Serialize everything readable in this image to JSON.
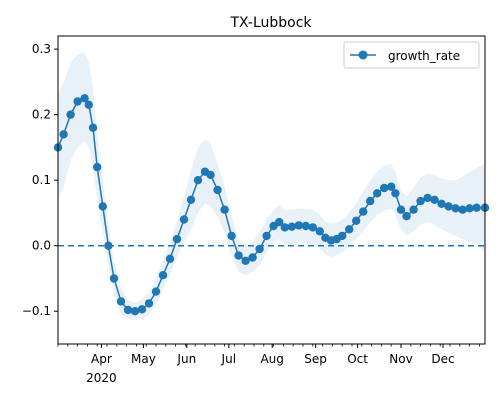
{
  "chart_data": {
    "type": "line",
    "title": "TX-Lubbock",
    "xlabel": "",
    "ylabel": "",
    "x_start": "2020-03-01",
    "x_end": "2020-12-31",
    "ylim": [
      -0.15,
      0.32
    ],
    "yticks": [
      -0.1,
      0.0,
      0.1,
      0.2,
      0.3
    ],
    "ytick_labels": [
      "−0.1",
      "0.0",
      "0.1",
      "0.2",
      "0.3"
    ],
    "xticks": [
      {
        "date": "2020-04-01",
        "label": "Apr"
      },
      {
        "date": "2020-05-01",
        "label": "May"
      },
      {
        "date": "2020-06-01",
        "label": "Jun"
      },
      {
        "date": "2020-07-01",
        "label": "Jul"
      },
      {
        "date": "2020-08-01",
        "label": "Aug"
      },
      {
        "date": "2020-09-01",
        "label": "Sep"
      },
      {
        "date": "2020-10-01",
        "label": "Oct"
      },
      {
        "date": "2020-11-01",
        "label": "Nov"
      },
      {
        "date": "2020-12-01",
        "label": "Dec"
      }
    ],
    "year_label": "2020",
    "reference_line": {
      "y": 0.0,
      "style": "dashed",
      "color": "#1f77b4"
    },
    "legend": {
      "location": "upper right",
      "entries": [
        "growth_rate"
      ]
    },
    "series": [
      {
        "name": "growth_rate",
        "color": "#1f77b4",
        "marker": "circle",
        "band_color": "#1f77b4",
        "points": [
          {
            "x": "2020-03-01",
            "y": 0.15,
            "lo": 0.07,
            "hi": 0.23
          },
          {
            "x": "2020-03-05",
            "y": 0.17,
            "lo": 0.09,
            "hi": 0.25
          },
          {
            "x": "2020-03-10",
            "y": 0.2,
            "lo": 0.13,
            "hi": 0.28
          },
          {
            "x": "2020-03-15",
            "y": 0.22,
            "lo": 0.15,
            "hi": 0.292
          },
          {
            "x": "2020-03-20",
            "y": 0.225,
            "lo": 0.16,
            "hi": 0.295
          },
          {
            "x": "2020-03-23",
            "y": 0.215,
            "lo": 0.15,
            "hi": 0.28
          },
          {
            "x": "2020-03-26",
            "y": 0.18,
            "lo": 0.12,
            "hi": 0.24
          },
          {
            "x": "2020-03-29",
            "y": 0.12,
            "lo": 0.07,
            "hi": 0.17
          },
          {
            "x": "2020-04-02",
            "y": 0.06,
            "lo": 0.02,
            "hi": 0.1
          },
          {
            "x": "2020-04-06",
            "y": 0.0,
            "lo": -0.03,
            "hi": 0.03
          },
          {
            "x": "2020-04-10",
            "y": -0.05,
            "lo": -0.075,
            "hi": -0.025
          },
          {
            "x": "2020-04-15",
            "y": -0.085,
            "lo": -0.105,
            "hi": -0.065
          },
          {
            "x": "2020-04-20",
            "y": -0.098,
            "lo": -0.112,
            "hi": -0.083
          },
          {
            "x": "2020-04-25",
            "y": -0.1,
            "lo": -0.113,
            "hi": -0.087
          },
          {
            "x": "2020-04-30",
            "y": -0.097,
            "lo": -0.112,
            "hi": -0.082
          },
          {
            "x": "2020-05-05",
            "y": -0.088,
            "lo": -0.105,
            "hi": -0.07
          },
          {
            "x": "2020-05-10",
            "y": -0.07,
            "lo": -0.09,
            "hi": -0.05
          },
          {
            "x": "2020-05-15",
            "y": -0.045,
            "lo": -0.068,
            "hi": -0.022
          },
          {
            "x": "2020-05-20",
            "y": -0.02,
            "lo": -0.045,
            "hi": 0.005
          },
          {
            "x": "2020-05-25",
            "y": 0.01,
            "lo": -0.018,
            "hi": 0.038
          },
          {
            "x": "2020-05-30",
            "y": 0.04,
            "lo": 0.005,
            "hi": 0.075
          },
          {
            "x": "2020-06-04",
            "y": 0.07,
            "lo": 0.025,
            "hi": 0.115
          },
          {
            "x": "2020-06-09",
            "y": 0.1,
            "lo": 0.05,
            "hi": 0.15
          },
          {
            "x": "2020-06-14",
            "y": 0.113,
            "lo": 0.065,
            "hi": 0.162
          },
          {
            "x": "2020-06-18",
            "y": 0.108,
            "lo": 0.06,
            "hi": 0.155
          },
          {
            "x": "2020-06-23",
            "y": 0.085,
            "lo": 0.045,
            "hi": 0.125
          },
          {
            "x": "2020-06-28",
            "y": 0.055,
            "lo": 0.02,
            "hi": 0.09
          },
          {
            "x": "2020-07-03",
            "y": 0.015,
            "lo": -0.015,
            "hi": 0.045
          },
          {
            "x": "2020-07-08",
            "y": -0.015,
            "lo": -0.04,
            "hi": 0.01
          },
          {
            "x": "2020-07-13",
            "y": -0.023,
            "lo": -0.045,
            "hi": 0.0
          },
          {
            "x": "2020-07-18",
            "y": -0.018,
            "lo": -0.04,
            "hi": 0.005
          },
          {
            "x": "2020-07-23",
            "y": -0.005,
            "lo": -0.03,
            "hi": 0.02
          },
          {
            "x": "2020-07-28",
            "y": 0.015,
            "lo": -0.01,
            "hi": 0.04
          },
          {
            "x": "2020-08-02",
            "y": 0.03,
            "lo": 0.005,
            "hi": 0.055
          },
          {
            "x": "2020-08-06",
            "y": 0.036,
            "lo": 0.01,
            "hi": 0.062
          },
          {
            "x": "2020-08-10",
            "y": 0.028,
            "lo": 0.002,
            "hi": 0.054
          },
          {
            "x": "2020-08-15",
            "y": 0.029,
            "lo": 0.002,
            "hi": 0.055
          },
          {
            "x": "2020-08-20",
            "y": 0.031,
            "lo": 0.005,
            "hi": 0.057
          },
          {
            "x": "2020-08-25",
            "y": 0.03,
            "lo": 0.004,
            "hi": 0.056
          },
          {
            "x": "2020-08-30",
            "y": 0.028,
            "lo": 0.002,
            "hi": 0.054
          },
          {
            "x": "2020-09-04",
            "y": 0.022,
            "lo": -0.003,
            "hi": 0.047
          },
          {
            "x": "2020-09-08",
            "y": 0.012,
            "lo": -0.013,
            "hi": 0.037
          },
          {
            "x": "2020-09-12",
            "y": 0.008,
            "lo": -0.018,
            "hi": 0.034
          },
          {
            "x": "2020-09-16",
            "y": 0.01,
            "lo": -0.015,
            "hi": 0.035
          },
          {
            "x": "2020-09-20",
            "y": 0.015,
            "lo": -0.01,
            "hi": 0.04
          },
          {
            "x": "2020-09-25",
            "y": 0.025,
            "lo": 0.0,
            "hi": 0.05
          },
          {
            "x": "2020-09-30",
            "y": 0.038,
            "lo": 0.01,
            "hi": 0.065
          },
          {
            "x": "2020-10-05",
            "y": 0.052,
            "lo": 0.022,
            "hi": 0.082
          },
          {
            "x": "2020-10-10",
            "y": 0.068,
            "lo": 0.036,
            "hi": 0.1
          },
          {
            "x": "2020-10-15",
            "y": 0.08,
            "lo": 0.047,
            "hi": 0.113
          },
          {
            "x": "2020-10-20",
            "y": 0.088,
            "lo": 0.054,
            "hi": 0.122
          },
          {
            "x": "2020-10-25",
            "y": 0.09,
            "lo": 0.056,
            "hi": 0.124
          },
          {
            "x": "2020-10-28",
            "y": 0.08,
            "lo": 0.047,
            "hi": 0.113
          },
          {
            "x": "2020-11-01",
            "y": 0.055,
            "lo": 0.025,
            "hi": 0.085
          },
          {
            "x": "2020-11-05",
            "y": 0.045,
            "lo": 0.015,
            "hi": 0.075
          },
          {
            "x": "2020-11-10",
            "y": 0.055,
            "lo": 0.022,
            "hi": 0.088
          },
          {
            "x": "2020-11-15",
            "y": 0.068,
            "lo": 0.032,
            "hi": 0.104
          },
          {
            "x": "2020-11-20",
            "y": 0.073,
            "lo": 0.036,
            "hi": 0.11
          },
          {
            "x": "2020-11-25",
            "y": 0.07,
            "lo": 0.032,
            "hi": 0.108
          },
          {
            "x": "2020-11-30",
            "y": 0.064,
            "lo": 0.025,
            "hi": 0.103
          },
          {
            "x": "2020-12-05",
            "y": 0.06,
            "lo": 0.02,
            "hi": 0.1
          },
          {
            "x": "2020-12-10",
            "y": 0.057,
            "lo": 0.015,
            "hi": 0.1
          },
          {
            "x": "2020-12-15",
            "y": 0.055,
            "lo": 0.01,
            "hi": 0.105
          },
          {
            "x": "2020-12-20",
            "y": 0.057,
            "lo": 0.005,
            "hi": 0.112
          },
          {
            "x": "2020-12-25",
            "y": 0.058,
            "lo": 0.0,
            "hi": 0.118
          },
          {
            "x": "2020-12-31",
            "y": 0.058,
            "lo": -0.01,
            "hi": 0.126
          }
        ]
      }
    ]
  }
}
